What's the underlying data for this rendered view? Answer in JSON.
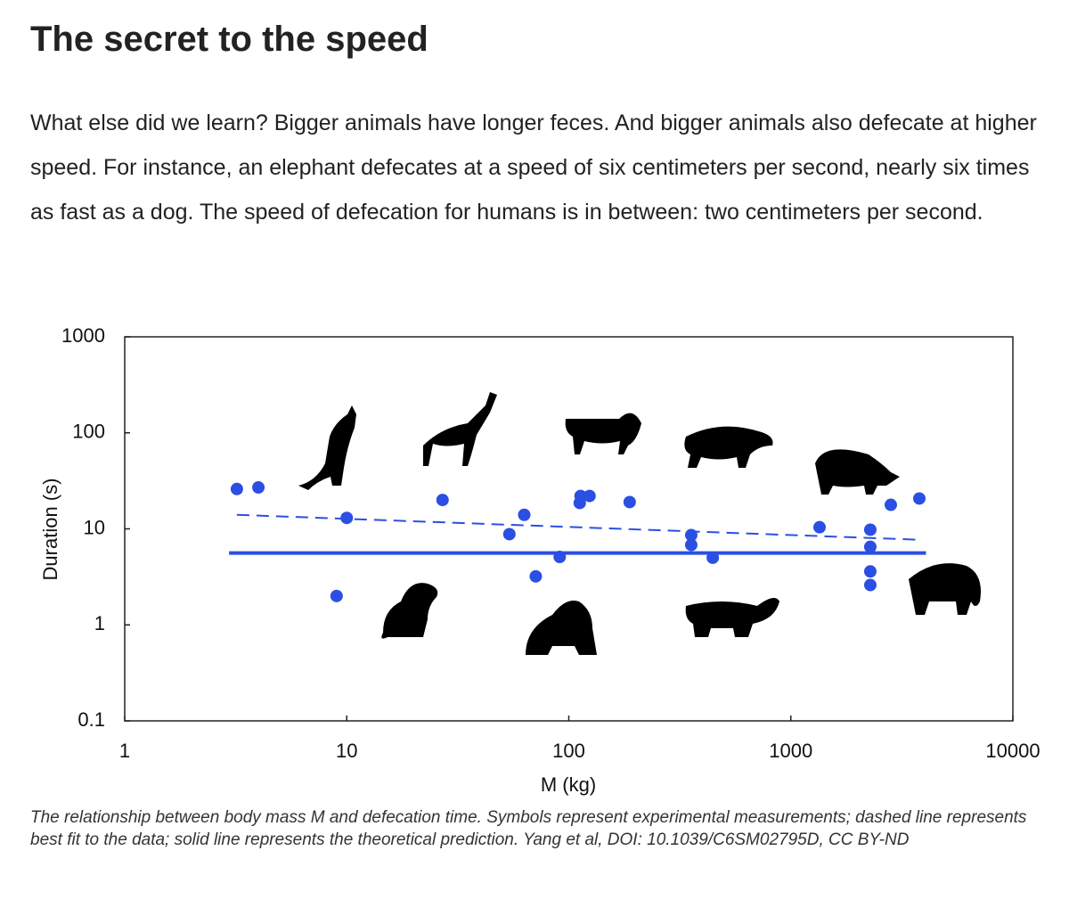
{
  "title": "The secret to the speed",
  "paragraph": "What else did we learn? Bigger animals have longer feces. And bigger animals also defecate at higher speed. For instance, an elephant defecates at a speed of six centimeters per second, nearly six times as fast as a dog. The speed of defecation for humans is in between: two centimeters per second.",
  "chart_data": {
    "type": "scatter",
    "x_label": "M (kg)",
    "y_label": "Duration (s)",
    "log_x": true,
    "log_y": true,
    "xlim": [
      1,
      10000
    ],
    "xticks": [
      1,
      10,
      100,
      1000,
      10000
    ],
    "ylim": [
      0.1,
      1000
    ],
    "yticks": [
      0.1,
      1,
      10,
      100,
      1000
    ],
    "series": [
      {
        "mode": "markers",
        "color": "#2b4fe3",
        "x": [
          3.2,
          4,
          10,
          9,
          27,
          54,
          63,
          71,
          91,
          112,
          113,
          124,
          188,
          356,
          356,
          445,
          1347,
          2280,
          2280,
          2280,
          2280,
          2820,
          3790
        ],
        "values": [
          26,
          27,
          13,
          2,
          20,
          8.8,
          14,
          3.2,
          5.1,
          18.6,
          22,
          22,
          19,
          8.6,
          6.8,
          5,
          10.4,
          9.8,
          6.5,
          3.6,
          2.6,
          17.8,
          20.7
        ]
      },
      {
        "mode": "dashed",
        "color": "#2b4fe3",
        "x": [
          3.2,
          3790
        ],
        "values": [
          14,
          7.7
        ]
      },
      {
        "mode": "solid",
        "color": "#2b4fe3",
        "x": [
          2.95,
          4060
        ],
        "values": [
          5.6,
          5.6
        ]
      }
    ]
  },
  "caption": "The relationship between body mass M and defecation time. Symbols represent experimental measurements; dashed line represents best fit to the data; solid line represents the theoretical prediction. Yang et al, DOI: 10.1039/C6SM02795D, CC BY-ND"
}
